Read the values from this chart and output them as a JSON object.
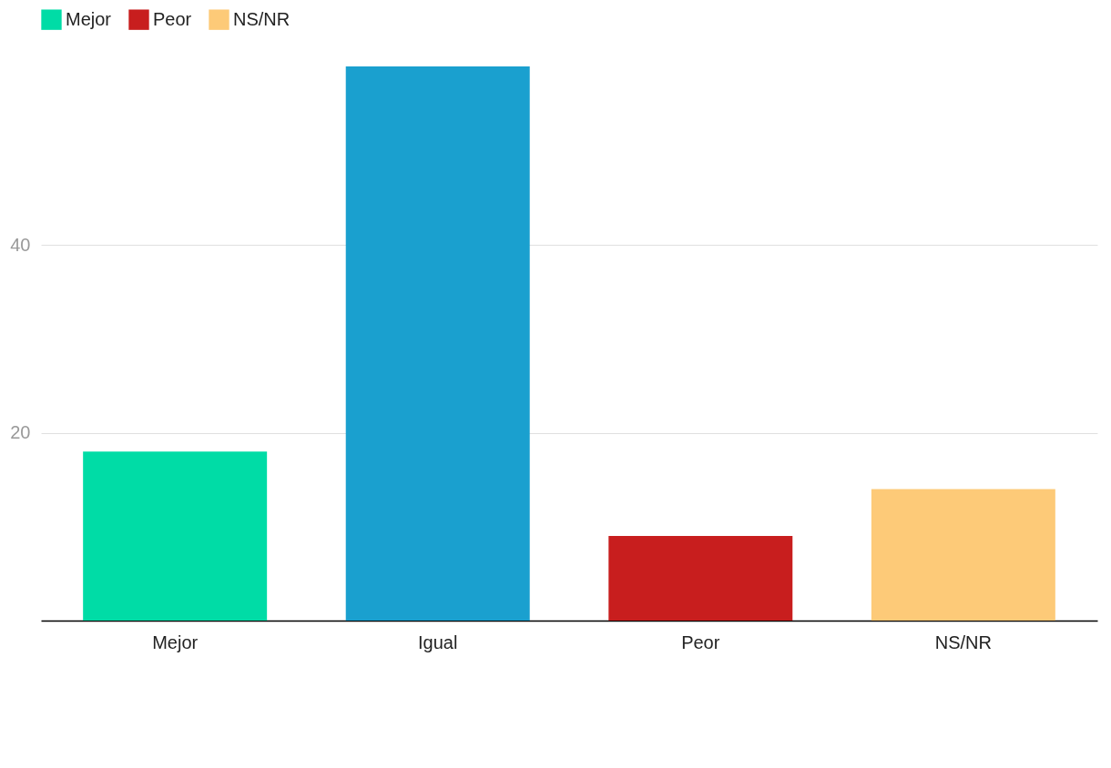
{
  "chart_data": {
    "type": "bar",
    "categories": [
      "Mejor",
      "Igual",
      "Peor",
      "NS/NR"
    ],
    "series": [
      {
        "name": "Mejor",
        "color": "#00dca6",
        "values": [
          18,
          null,
          null,
          null
        ]
      },
      {
        "color": "#1aa0cf",
        "values": [
          null,
          59,
          null,
          null
        ]
      },
      {
        "name": "Peor",
        "color": "#c81e1e",
        "values": [
          null,
          null,
          9,
          null
        ]
      },
      {
        "name": "NS/NR",
        "color": "#fdca78",
        "values": [
          null,
          null,
          null,
          14
        ]
      }
    ],
    "ylim": [
      0,
      59
    ],
    "yticks": [
      20,
      40
    ],
    "grid": "y",
    "legend": "top left"
  }
}
